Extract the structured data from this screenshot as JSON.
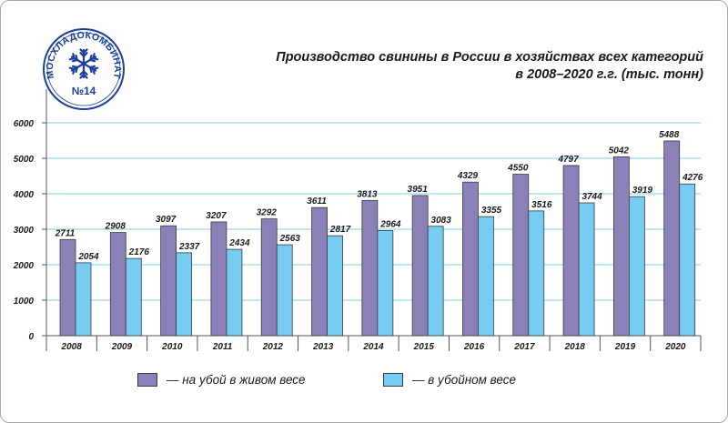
{
  "logo": {
    "text": "МОСХЛАДОКОМБИНАТ",
    "number": "№14",
    "icon": "snowflake-icon"
  },
  "chart_data": {
    "type": "bar",
    "title": "Производство свинины в России в хозяйствах всех категорий",
    "subtitle": "в 2008–2020 г.г. (тыс. тонн)",
    "categories": [
      "2008",
      "2009",
      "2010",
      "2011",
      "2012",
      "2013",
      "2014",
      "2015",
      "2016",
      "2017",
      "2018",
      "2019",
      "2020"
    ],
    "series": [
      {
        "name": "— на убой в живом весе",
        "color": "#8b81b8",
        "values": [
          2711,
          2908,
          3097,
          3207,
          3292,
          3611,
          3813,
          3951,
          4329,
          4550,
          4797,
          5042,
          5488
        ]
      },
      {
        "name": "— в убойном весе",
        "color": "#77ccf2",
        "values": [
          2054,
          2176,
          2337,
          2434,
          2563,
          2817,
          2964,
          3083,
          3355,
          3516,
          3744,
          3919,
          4276
        ]
      }
    ],
    "ylim": [
      0,
      6000
    ],
    "yticks": [
      0,
      1000,
      2000,
      3000,
      4000,
      5000,
      6000
    ],
    "grid": true,
    "legend": "bottom"
  }
}
